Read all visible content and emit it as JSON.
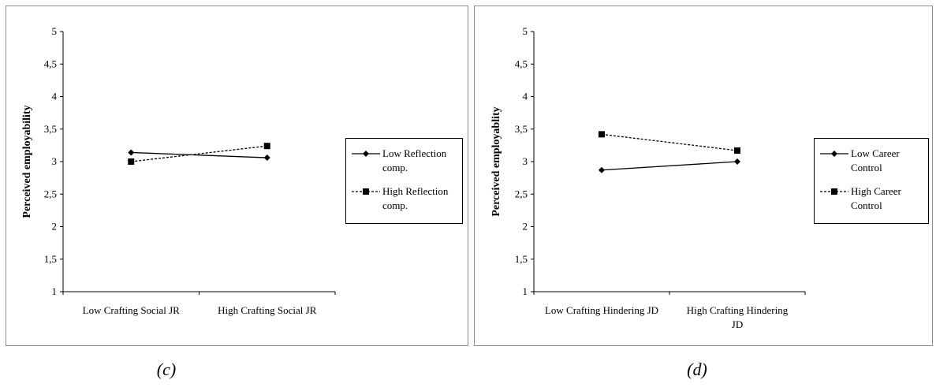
{
  "chart_data": [
    {
      "type": "line",
      "panel_caption": "(c)",
      "title": "",
      "xlabel": "",
      "ylabel": "Perceived employability",
      "ylim": [
        1,
        5
      ],
      "yticks": [
        "1",
        "1,5",
        "2",
        "2,5",
        "3",
        "3,5",
        "4",
        "4,5",
        "5"
      ],
      "categories": [
        "Low Crafting Social JR",
        "High Crafting Social JR"
      ],
      "series": [
        {
          "name": "Low Reflection comp.",
          "name_lines": [
            "Low Reflection",
            "comp."
          ],
          "values": [
            3.14,
            3.06
          ],
          "marker": "diamond",
          "dash": false
        },
        {
          "name": "High Reflection comp.",
          "name_lines": [
            "High Reflection",
            "comp."
          ],
          "values": [
            3.0,
            3.24
          ],
          "marker": "square",
          "dash": true
        }
      ],
      "legend_position": "right"
    },
    {
      "type": "line",
      "panel_caption": "(d)",
      "title": "",
      "xlabel": "",
      "ylabel": "Perceived employablity",
      "ylim": [
        1,
        5
      ],
      "yticks": [
        "1",
        "1,5",
        "2",
        "2,5",
        "3",
        "3,5",
        "4",
        "4,5",
        "5"
      ],
      "categories": [
        "Low Crafting Hindering JD",
        "High Crafting Hindering JD"
      ],
      "category_lines": [
        [
          "Low Crafting Hindering JD"
        ],
        [
          "High Crafting Hindering",
          "JD"
        ]
      ],
      "series": [
        {
          "name": "Low Career Control",
          "name_lines": [
            "Low Career",
            "Control"
          ],
          "values": [
            2.87,
            3.0
          ],
          "marker": "diamond",
          "dash": false
        },
        {
          "name": "High Career Control",
          "name_lines": [
            "High Career",
            "Control"
          ],
          "values": [
            3.42,
            3.17
          ],
          "marker": "square",
          "dash": true
        }
      ],
      "legend_position": "right"
    }
  ]
}
